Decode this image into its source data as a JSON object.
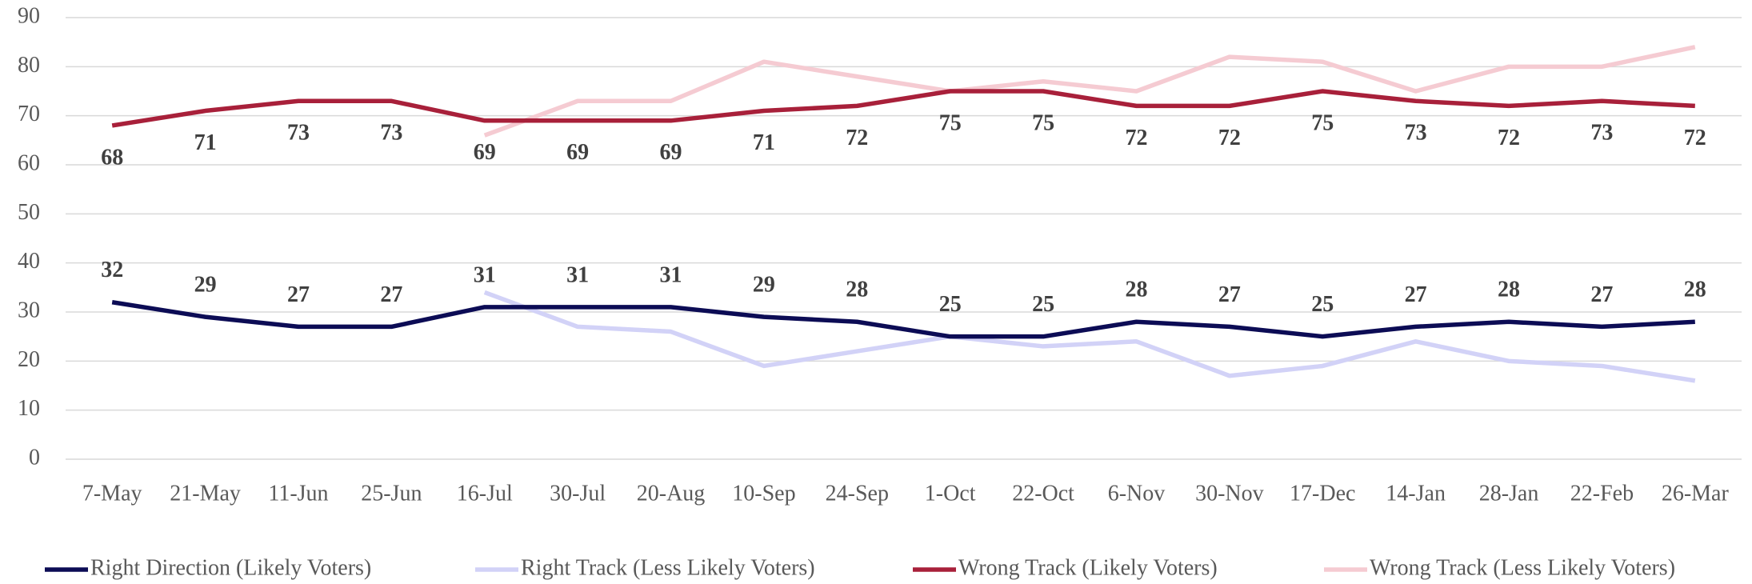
{
  "chart_data": {
    "type": "line",
    "categories": [
      "7-May",
      "21-May",
      "11-Jun",
      "25-Jun",
      "16-Jul",
      "30-Jul",
      "20-Aug",
      "10-Sep",
      "24-Sep",
      "1-Oct",
      "22-Oct",
      "6-Nov",
      "30-Nov",
      "17-Dec",
      "14-Jan",
      "28-Jan",
      "22-Feb",
      "26-Mar"
    ],
    "series": [
      {
        "name": "Right Direction (Likely Voters)",
        "color": "#0c0c55",
        "data_labels": "above",
        "values": [
          32,
          29,
          27,
          27,
          31,
          31,
          31,
          29,
          28,
          25,
          25,
          28,
          27,
          25,
          27,
          28,
          27,
          28
        ]
      },
      {
        "name": "Right Track (Less Likely Voters)",
        "color": "#d2d2f7",
        "values": [
          null,
          null,
          null,
          null,
          34,
          27,
          26,
          19,
          22,
          25,
          23,
          24,
          17,
          19,
          24,
          20,
          19,
          16
        ]
      },
      {
        "name": "Wrong Track (Likely Voters)",
        "color": "#a8203a",
        "data_labels": "below",
        "values": [
          68,
          71,
          73,
          73,
          69,
          69,
          69,
          71,
          72,
          75,
          75,
          72,
          72,
          75,
          73,
          72,
          73,
          72
        ]
      },
      {
        "name": "Wrong Track (Less Likely Voters)",
        "color": "#f5cbd2",
        "values": [
          null,
          null,
          null,
          null,
          66,
          73,
          73,
          81,
          78,
          75,
          77,
          75,
          82,
          81,
          75,
          80,
          80,
          84
        ]
      }
    ],
    "ylim": [
      0,
      90
    ],
    "yticks": [
      0,
      10,
      20,
      30,
      40,
      50,
      60,
      70,
      80,
      90
    ],
    "grid": true,
    "legend": "bottom"
  }
}
